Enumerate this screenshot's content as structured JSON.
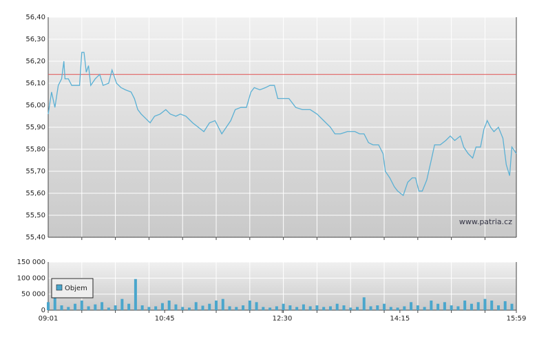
{
  "chart_data": [
    {
      "type": "line",
      "x": [
        541,
        544,
        547,
        550,
        553,
        555,
        556,
        559,
        562,
        566,
        569,
        571,
        573,
        575,
        577,
        579,
        583,
        587,
        590,
        595,
        598,
        600,
        602,
        606,
        610,
        615,
        618,
        621,
        624,
        628,
        632,
        636,
        641,
        646,
        650,
        655,
        659,
        664,
        670,
        675,
        680,
        685,
        690,
        693,
        696,
        700,
        704,
        708,
        713,
        718,
        722,
        725,
        730,
        735,
        739,
        743,
        746,
        750,
        756,
        762,
        768,
        775,
        781,
        787,
        793,
        797,
        802,
        808,
        815,
        819,
        823,
        827,
        831,
        836,
        840,
        842,
        846,
        850,
        853,
        858,
        862,
        866,
        869,
        872,
        875,
        879,
        883,
        886,
        891,
        896,
        900,
        904,
        909,
        912,
        916,
        920,
        923,
        927,
        930,
        933,
        936,
        939,
        943,
        947,
        950,
        953,
        955,
        959
      ],
      "values": [
        55.96,
        56.06,
        55.99,
        56.09,
        56.12,
        56.2,
        56.12,
        56.12,
        56.09,
        56.09,
        56.09,
        56.24,
        56.24,
        56.15,
        56.18,
        56.09,
        56.12,
        56.14,
        56.09,
        56.1,
        56.16,
        56.13,
        56.1,
        56.08,
        56.07,
        56.06,
        56.03,
        55.98,
        55.96,
        55.94,
        55.92,
        55.95,
        55.96,
        55.98,
        55.96,
        55.95,
        55.96,
        55.95,
        55.92,
        55.9,
        55.88,
        55.92,
        55.93,
        55.9,
        55.87,
        55.9,
        55.93,
        55.98,
        55.99,
        55.99,
        56.06,
        56.08,
        56.07,
        56.08,
        56.09,
        56.09,
        56.03,
        56.03,
        56.03,
        55.99,
        55.98,
        55.98,
        55.96,
        55.93,
        55.9,
        55.87,
        55.87,
        55.88,
        55.88,
        55.87,
        55.87,
        55.83,
        55.82,
        55.82,
        55.78,
        55.7,
        55.67,
        55.63,
        55.61,
        55.59,
        55.65,
        55.67,
        55.67,
        55.61,
        55.61,
        55.66,
        55.75,
        55.82,
        55.82,
        55.84,
        55.86,
        55.84,
        55.86,
        55.81,
        55.78,
        55.76,
        55.81,
        55.81,
        55.89,
        55.93,
        55.9,
        55.88,
        55.9,
        55.85,
        55.73,
        55.68,
        55.81,
        55.78
      ],
      "color": "#5ab0d4",
      "reference_line": 56.14,
      "reference_color": "#e05050",
      "xlim": [
        541,
        959
      ],
      "xgrid": [
        571,
        601,
        631,
        661,
        691,
        721,
        751,
        781,
        811,
        841,
        871,
        901,
        931
      ],
      "ylim": [
        55.4,
        56.4
      ],
      "yticks": [
        {
          "value": 55.4,
          "label": "55,40"
        },
        {
          "value": 55.5,
          "label": "55,50"
        },
        {
          "value": 55.6,
          "label": "55,60"
        },
        {
          "value": 55.7,
          "label": "55,70"
        },
        {
          "value": 55.8,
          "label": "55,80"
        },
        {
          "value": 55.9,
          "label": "55,90"
        },
        {
          "value": 56.0,
          "label": "56,00"
        },
        {
          "value": 56.1,
          "label": "56,10"
        },
        {
          "value": 56.2,
          "label": "56,20"
        },
        {
          "value": 56.3,
          "label": "56,30"
        },
        {
          "value": 56.4,
          "label": "56,40"
        }
      ],
      "watermark": "www.patria.cz"
    },
    {
      "type": "bar",
      "x": [
        541,
        547,
        553,
        559,
        565,
        571,
        577,
        583,
        589,
        595,
        601,
        607,
        613,
        619,
        625,
        631,
        637,
        643,
        649,
        655,
        661,
        667,
        673,
        679,
        685,
        691,
        697,
        703,
        709,
        715,
        721,
        727,
        733,
        739,
        745,
        751,
        757,
        763,
        769,
        775,
        781,
        787,
        793,
        799,
        805,
        811,
        817,
        823,
        829,
        835,
        841,
        847,
        853,
        859,
        865,
        871,
        877,
        883,
        889,
        895,
        901,
        907,
        913,
        919,
        925,
        931,
        937,
        943,
        949,
        955
      ],
      "series": [
        {
          "name": "Objem",
          "color": "#4aa6cc",
          "values": [
            25000,
            40000,
            15000,
            10000,
            20000,
            30000,
            12000,
            18000,
            25000,
            8000,
            15000,
            35000,
            20000,
            97000,
            15000,
            10000,
            12000,
            22000,
            30000,
            18000,
            10000,
            8000,
            25000,
            14000,
            20000,
            30000,
            35000,
            12000,
            10000,
            15000,
            30000,
            25000,
            10000,
            8000,
            12000,
            20000,
            15000,
            10000,
            18000,
            12000,
            15000,
            10000,
            12000,
            20000,
            15000,
            8000,
            10000,
            40000,
            12000,
            15000,
            20000,
            10000,
            8000,
            12000,
            25000,
            15000,
            10000,
            30000,
            20000,
            25000,
            15000,
            12000,
            30000,
            20000,
            25000,
            35000,
            30000,
            15000,
            28000,
            20000
          ]
        }
      ],
      "xlim": [
        541,
        959
      ],
      "xgrid": [
        571,
        601,
        631,
        661,
        691,
        721,
        751,
        781,
        811,
        841,
        871,
        901,
        931
      ],
      "xticks": [
        {
          "value": 541,
          "label": "09:01"
        },
        {
          "value": 645,
          "label": "10:45"
        },
        {
          "value": 750,
          "label": "12:30"
        },
        {
          "value": 855,
          "label": "14:15"
        },
        {
          "value": 959,
          "label": "15:59"
        }
      ],
      "ylim": [
        0,
        150000
      ],
      "yticks": [
        0,
        {
          "value": 50000,
          "label": "50 000"
        },
        {
          "value": 100000,
          "label": "100 000"
        },
        {
          "value": 150000,
          "label": "150 000"
        }
      ]
    }
  ]
}
